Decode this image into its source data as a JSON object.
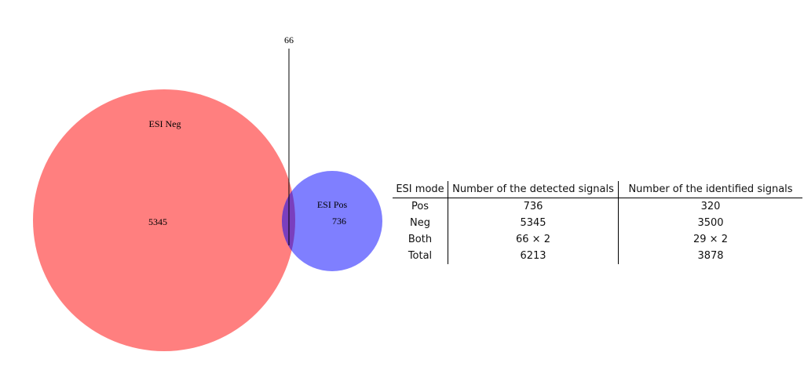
{
  "venn": {
    "sets": [
      {
        "name": "ESI Neg",
        "unique_count": "5345",
        "color": "#ff7f7f"
      },
      {
        "name": "ESI Pos",
        "unique_count": "736",
        "color": "#7f7fff"
      }
    ],
    "overlap_count": "66",
    "overlap_color": "#7a3fbe"
  },
  "table": {
    "headers": [
      "ESI mode",
      "Number of the detected signals",
      "Number of the identified signals"
    ],
    "rows": [
      [
        "Pos",
        "736",
        "320"
      ],
      [
        "Neg",
        "5345",
        "3500"
      ],
      [
        "Both",
        "66 × 2",
        "29 × 2"
      ],
      [
        "Total",
        "6213",
        "3878"
      ]
    ]
  }
}
